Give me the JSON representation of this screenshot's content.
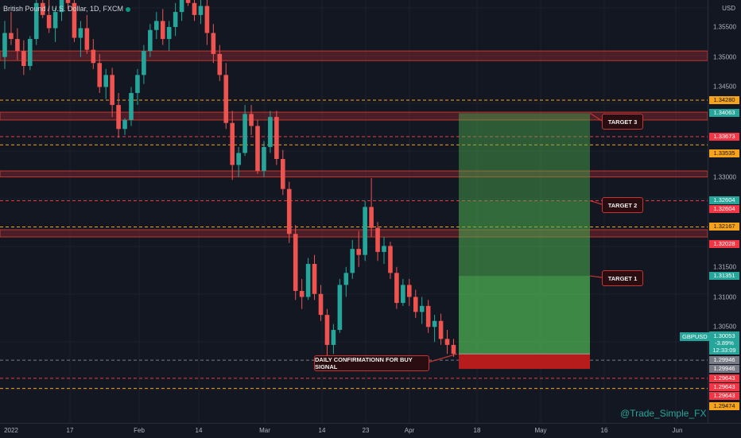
{
  "header": {
    "title": "British Pound / U.S. Dollar, 1D, FXCM"
  },
  "price_axis": {
    "currency": "USD",
    "ticks": [
      "1.35500",
      "1.35000",
      "1.34500",
      "1.30500",
      "1.30000",
      "1.29946"
    ],
    "ticks_all": [
      {
        "label": "1.35500",
        "price": 1.355
      },
      {
        "label": "1.35000",
        "price": 1.35
      },
      {
        "label": "1.34500",
        "price": 1.345
      },
      {
        "label": "1.33000",
        "price": 1.33
      },
      {
        "label": "1.31500",
        "price": 1.315
      },
      {
        "label": "1.31000",
        "price": 1.31
      },
      {
        "label": "1.30500",
        "price": 1.305
      }
    ],
    "badges": [
      {
        "label": "1.34280",
        "price": 1.3428,
        "color": "orange"
      },
      {
        "label": "1.34063",
        "price": 1.34063,
        "color": "green"
      },
      {
        "label": "1.33673",
        "price": 1.33673,
        "color": "red"
      },
      {
        "label": "1.33535",
        "price": 1.33535,
        "color": "orange"
      },
      {
        "label": "1.32604",
        "price": 1.32604,
        "color": "green"
      },
      {
        "label": "1.32604",
        "price": 1.32604,
        "color": "red"
      },
      {
        "label": "1.32167",
        "price": 1.32167,
        "color": "orange"
      },
      {
        "label": "1.32028",
        "price": 1.32028,
        "color": "red"
      },
      {
        "label": "1.31351",
        "price": 1.31351,
        "color": "green"
      },
      {
        "label": "1.29946",
        "price": 1.29946,
        "color": "gray"
      },
      {
        "label": "1.29946",
        "price": 1.29946,
        "color": "gray"
      },
      {
        "label": "1.29643",
        "price": 1.29643,
        "color": "red"
      },
      {
        "label": "1.29643",
        "price": 1.29643,
        "color": "red"
      },
      {
        "label": "1.29643",
        "price": 1.29643,
        "color": "red"
      },
      {
        "label": "1.29474",
        "price": 1.29474,
        "color": "orange"
      }
    ],
    "current": {
      "symbol": "GBPUSD",
      "price": "1.30053",
      "change": "-3.89%",
      "countdown": "12:33:09"
    }
  },
  "time_axis": {
    "labels": [
      "2022",
      "17",
      "Feb",
      "14",
      "Mar",
      "14",
      "23",
      "Apr",
      "18",
      "May",
      "16",
      "Jun"
    ]
  },
  "levels": {
    "zones": [
      {
        "top": 1.351,
        "bottom": 1.3494
      },
      {
        "top": 1.3408,
        "bottom": 1.3395
      },
      {
        "top": 1.331,
        "bottom": 1.33
      },
      {
        "top": 1.3212,
        "bottom": 1.32
      }
    ],
    "dashed_orange": [
      1.3428,
      1.33535,
      1.32167,
      1.29474
    ],
    "dashed_red": [
      1.33673,
      1.32604,
      1.29643
    ],
    "dashed_gray": [
      1.29946
    ]
  },
  "position": {
    "entry": 1.3005,
    "target_price": 1.34063,
    "stop": 1.298,
    "targets": [
      {
        "label": "TARGET 3",
        "price": 1.34063
      },
      {
        "label": "TARGET 2",
        "price": 1.32604
      },
      {
        "label": "TARGET 1",
        "price": 1.31351
      }
    ]
  },
  "annotation": {
    "signal": "DAILY CONFIRMATIONN FOR BUY SIGNAL"
  },
  "watermark": "@Trade_Simple_FX",
  "colors": {
    "up": "#26a69a",
    "down": "#ef5350",
    "profit": "#4caf50",
    "loss": "#b71c1c"
  },
  "chart_data": {
    "type": "candlestick",
    "symbol": "GBPUSD",
    "timeframe": "1D",
    "candles": [
      [
        1.35,
        1.356,
        1.348,
        1.354
      ],
      [
        1.354,
        1.3575,
        1.352,
        1.353
      ],
      [
        1.353,
        1.3548,
        1.3495,
        1.351
      ],
      [
        1.351,
        1.3528,
        1.347,
        1.3485
      ],
      [
        1.3485,
        1.3535,
        1.3478,
        1.353
      ],
      [
        1.353,
        1.3598,
        1.352,
        1.359
      ],
      [
        1.359,
        1.3625,
        1.3565,
        1.357
      ],
      [
        1.357,
        1.3612,
        1.354,
        1.3548
      ],
      [
        1.3548,
        1.3582,
        1.3525,
        1.3575
      ],
      [
        1.3575,
        1.362,
        1.356,
        1.3605
      ],
      [
        1.3605,
        1.364,
        1.358,
        1.359
      ],
      [
        1.359,
        1.3612,
        1.3525,
        1.3532
      ],
      [
        1.3532,
        1.356,
        1.35,
        1.3548
      ],
      [
        1.3548,
        1.357,
        1.3505,
        1.3512
      ],
      [
        1.3512,
        1.353,
        1.348,
        1.349
      ],
      [
        1.349,
        1.3505,
        1.344,
        1.345
      ],
      [
        1.345,
        1.348,
        1.343,
        1.347
      ],
      [
        1.347,
        1.3482,
        1.34,
        1.342
      ],
      [
        1.342,
        1.344,
        1.3365,
        1.338
      ],
      [
        1.338,
        1.3398,
        1.337,
        1.3395
      ],
      [
        1.3395,
        1.345,
        1.3385,
        1.344
      ],
      [
        1.344,
        1.348,
        1.342,
        1.347
      ],
      [
        1.347,
        1.352,
        1.3455,
        1.351
      ],
      [
        1.351,
        1.3555,
        1.35,
        1.3545
      ],
      [
        1.3545,
        1.3575,
        1.353,
        1.356
      ],
      [
        1.356,
        1.358,
        1.352,
        1.353
      ],
      [
        1.353,
        1.356,
        1.351,
        1.355
      ],
      [
        1.355,
        1.359,
        1.3535,
        1.3575
      ],
      [
        1.3575,
        1.361,
        1.356,
        1.36
      ],
      [
        1.36,
        1.3625,
        1.3585,
        1.359
      ],
      [
        1.359,
        1.361,
        1.356,
        1.357
      ],
      [
        1.357,
        1.36,
        1.3555,
        1.3585
      ],
      [
        1.3585,
        1.36,
        1.352,
        1.354
      ],
      [
        1.354,
        1.3555,
        1.349,
        1.3505
      ],
      [
        1.3505,
        1.352,
        1.346,
        1.347
      ],
      [
        1.347,
        1.349,
        1.338,
        1.339
      ],
      [
        1.339,
        1.341,
        1.3295,
        1.332
      ],
      [
        1.332,
        1.335,
        1.33,
        1.334
      ],
      [
        1.334,
        1.342,
        1.3335,
        1.3405
      ],
      [
        1.3405,
        1.342,
        1.337,
        1.3385
      ],
      [
        1.3385,
        1.3395,
        1.3305,
        1.331
      ],
      [
        1.331,
        1.336,
        1.33,
        1.335
      ],
      [
        1.335,
        1.341,
        1.334,
        1.34
      ],
      [
        1.34,
        1.341,
        1.332,
        1.333
      ],
      [
        1.333,
        1.3345,
        1.327,
        1.328
      ],
      [
        1.328,
        1.3292,
        1.319,
        1.3205
      ],
      [
        1.3205,
        1.322,
        1.3095,
        1.311
      ],
      [
        1.311,
        1.313,
        1.308,
        1.31
      ],
      [
        1.31,
        1.3165,
        1.3095,
        1.3155
      ],
      [
        1.3155,
        1.317,
        1.3095,
        1.3105
      ],
      [
        1.3105,
        1.312,
        1.306,
        1.307
      ],
      [
        1.307,
        1.308,
        1.3,
        1.302
      ],
      [
        1.302,
        1.3055,
        1.3005,
        1.3045
      ],
      [
        1.3045,
        1.313,
        1.304,
        1.312
      ],
      [
        1.312,
        1.315,
        1.31,
        1.314
      ],
      [
        1.314,
        1.3195,
        1.313,
        1.318
      ],
      [
        1.318,
        1.321,
        1.315,
        1.317
      ],
      [
        1.317,
        1.326,
        1.316,
        1.325
      ],
      [
        1.325,
        1.3298,
        1.32,
        1.3215
      ],
      [
        1.3215,
        1.3225,
        1.316,
        1.3175
      ],
      [
        1.3175,
        1.32,
        1.3155,
        1.3185
      ],
      [
        1.3185,
        1.3192,
        1.313,
        1.314
      ],
      [
        1.314,
        1.315,
        1.308,
        1.309
      ],
      [
        1.309,
        1.313,
        1.3085,
        1.312
      ],
      [
        1.312,
        1.313,
        1.3085,
        1.31
      ],
      [
        1.31,
        1.3112,
        1.3065,
        1.3075
      ],
      [
        1.3075,
        1.31,
        1.3055,
        1.3085
      ],
      [
        1.3085,
        1.3095,
        1.304,
        1.305
      ],
      [
        1.305,
        1.307,
        1.3025,
        1.306
      ],
      [
        1.306,
        1.3072,
        1.302,
        1.303
      ],
      [
        1.303,
        1.3045,
        1.3005,
        1.302
      ],
      [
        1.302,
        1.303,
        1.3,
        1.3005
      ]
    ]
  }
}
